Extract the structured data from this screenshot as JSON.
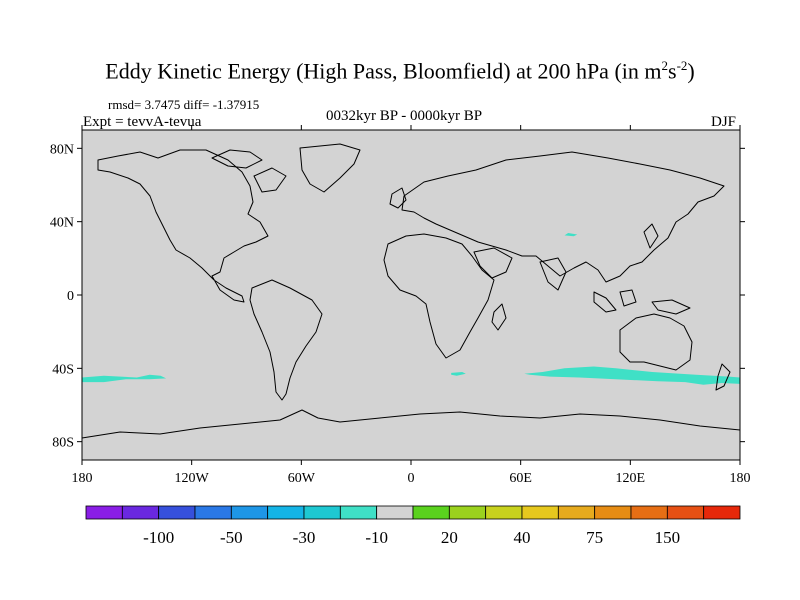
{
  "title": {
    "main": "Eddy Kinetic Energy (High Pass, Bloomfield) at 200 hPa (in m",
    "sup1": "2",
    "mid": "s",
    "sup2": "-2",
    "close": ")"
  },
  "stats": "rmsd= 3.7475  diff= -1.37915",
  "experiment": "Expt = tevvA-tevua",
  "period": "0032kyr BP - 0000kyr BP",
  "season": "DJF",
  "map": {
    "projection": "cylindrical equidistant",
    "lon_range": [
      -180,
      180
    ],
    "lat_range": [
      -90,
      90
    ],
    "background_color": "#d3d3d3",
    "coastline_color": "#000000",
    "fill_color": "#3fe0c6",
    "x_ticks": [
      {
        "lon": -180,
        "label": "180"
      },
      {
        "lon": -120,
        "label": "120W"
      },
      {
        "lon": -60,
        "label": "60W"
      },
      {
        "lon": 0,
        "label": "0"
      },
      {
        "lon": 60,
        "label": "60E"
      },
      {
        "lon": 120,
        "label": "120E"
      },
      {
        "lon": 180,
        "label": "180"
      }
    ],
    "y_ticks": [
      {
        "lat": 80,
        "label": "80N"
      },
      {
        "lat": 40,
        "label": "40N"
      },
      {
        "lat": 0,
        "label": "0"
      },
      {
        "lat": -40,
        "label": "40S"
      },
      {
        "lat": -80,
        "label": "80S"
      }
    ],
    "regions": [
      {
        "name": "anomaly-south-pacific",
        "value": "-10",
        "coords": [
          [
            -180,
            -45
          ],
          [
            -168,
            -44
          ],
          [
            -150,
            -45
          ],
          [
            -143,
            -43.5
          ],
          [
            -137,
            -44
          ],
          [
            -134,
            -45.5
          ],
          [
            -143,
            -46
          ],
          [
            -156,
            -46
          ],
          [
            -168,
            -47.5
          ],
          [
            -180,
            -47.5
          ]
        ]
      },
      {
        "name": "anomaly-south-atlantic",
        "value": "-10",
        "coords": [
          [
            22,
            -42.5
          ],
          [
            28,
            -42
          ],
          [
            30,
            -43
          ],
          [
            25,
            -44
          ],
          [
            22,
            -43.5
          ]
        ]
      },
      {
        "name": "anomaly-indian-pacific",
        "value": "-10",
        "coords": [
          [
            62,
            -43
          ],
          [
            72,
            -42
          ],
          [
            84,
            -40
          ],
          [
            100,
            -39
          ],
          [
            112,
            -40
          ],
          [
            132,
            -42
          ],
          [
            156,
            -43.5
          ],
          [
            174,
            -44.5
          ],
          [
            180,
            -45
          ],
          [
            180,
            -48.5
          ],
          [
            170,
            -48
          ],
          [
            160,
            -49
          ],
          [
            150,
            -47.5
          ],
          [
            135,
            -47
          ],
          [
            112,
            -46
          ],
          [
            92,
            -45
          ],
          [
            76,
            -44.5
          ],
          [
            65,
            -43.5
          ]
        ]
      },
      {
        "name": "anomaly-tibet",
        "value": "-10",
        "coords": [
          [
            84,
            32.5
          ],
          [
            89,
            32
          ],
          [
            91,
            33
          ],
          [
            86,
            33.8
          ]
        ]
      }
    ]
  },
  "colorbar": {
    "colors": [
      "#8a1ee6",
      "#6a28e0",
      "#3650dc",
      "#2a78e6",
      "#1e96e6",
      "#14b4e6",
      "#1ec8d2",
      "#3fe0c6",
      "#d3d3d3",
      "#5ad21e",
      "#9bd21e",
      "#c8d21e",
      "#e6c81e",
      "#e6aa1e",
      "#e68c14",
      "#e66e14",
      "#e65014",
      "#e6280a"
    ],
    "labels": [
      {
        "after_box": 2,
        "text": "-100"
      },
      {
        "after_box": 4,
        "text": "-50"
      },
      {
        "after_box": 6,
        "text": "-30"
      },
      {
        "after_box": 8,
        "text": "-10"
      },
      {
        "after_box": 10,
        "text": "20"
      },
      {
        "after_box": 12,
        "text": "40"
      },
      {
        "after_box": 14,
        "text": "75"
      },
      {
        "after_box": 16,
        "text": "150"
      }
    ]
  }
}
